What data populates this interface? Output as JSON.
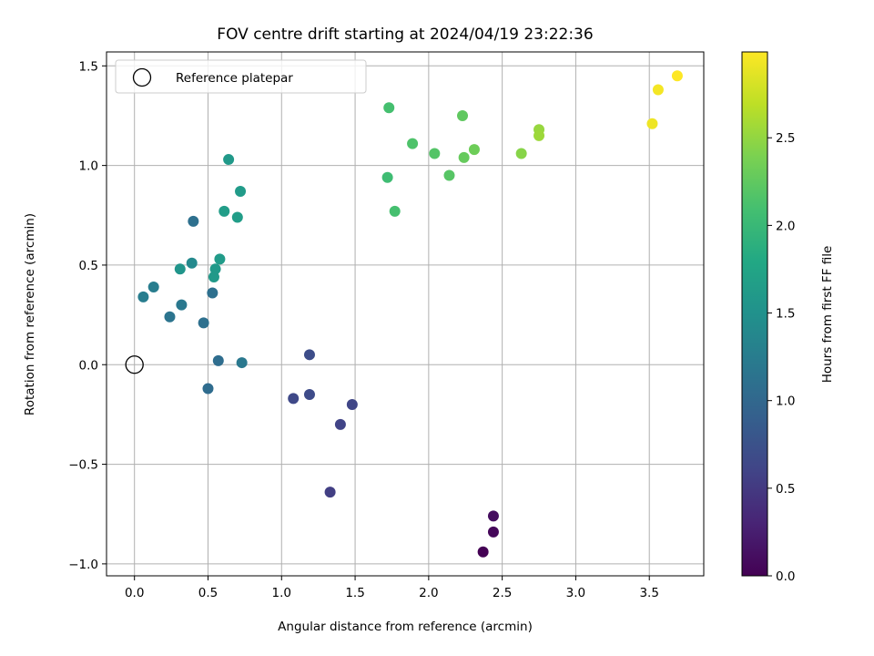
{
  "chart_data": {
    "type": "scatter",
    "title": "FOV centre drift starting at 2024/04/19 23:22:36",
    "xlabel": "Angular distance from reference (arcmin)",
    "ylabel": "Rotation from reference (arcmin)",
    "xlim": [
      -0.19,
      3.87
    ],
    "ylim": [
      -1.06,
      1.57
    ],
    "xticks": [
      0.0,
      0.5,
      1.0,
      1.5,
      2.0,
      2.5,
      3.0,
      3.5
    ],
    "xtick_labels": [
      "0.0",
      "0.5",
      "1.0",
      "1.5",
      "2.0",
      "2.5",
      "3.0",
      "3.5"
    ],
    "yticks": [
      -1.0,
      -0.5,
      0.0,
      0.5,
      1.0,
      1.5
    ],
    "ytick_labels": [
      "−1.0",
      "−0.5",
      "0.0",
      "0.5",
      "1.0",
      "1.5"
    ],
    "grid": true,
    "legend": {
      "position": "upper-left",
      "entries": [
        {
          "label": "Reference platepar",
          "marker": "hollow-circle",
          "x": 0.0,
          "y": 0.0
        }
      ]
    },
    "colorbar": {
      "label": "Hours from first FF file",
      "colormap": "viridis",
      "range": [
        0.0,
        2.99
      ],
      "ticks": [
        0.0,
        0.5,
        1.0,
        1.5,
        2.0,
        2.5
      ],
      "tick_labels": [
        "0.0",
        "0.5",
        "1.0",
        "1.5",
        "2.0",
        "2.5"
      ]
    },
    "points": [
      {
        "x": 2.37,
        "y": -0.94,
        "c": 0.0
      },
      {
        "x": 2.44,
        "y": -0.84,
        "c": 0.05
      },
      {
        "x": 2.44,
        "y": -0.76,
        "c": 0.1
      },
      {
        "x": 1.33,
        "y": -0.64,
        "c": 0.55
      },
      {
        "x": 1.4,
        "y": -0.3,
        "c": 0.6
      },
      {
        "x": 1.48,
        "y": -0.2,
        "c": 0.62
      },
      {
        "x": 1.08,
        "y": -0.17,
        "c": 0.65
      },
      {
        "x": 1.19,
        "y": -0.15,
        "c": 0.68
      },
      {
        "x": 1.19,
        "y": 0.05,
        "c": 0.7
      },
      {
        "x": 0.5,
        "y": -0.12,
        "c": 1.05
      },
      {
        "x": 0.57,
        "y": 0.02,
        "c": 1.07
      },
      {
        "x": 0.73,
        "y": 0.01,
        "c": 1.2
      },
      {
        "x": 0.47,
        "y": 0.21,
        "c": 1.1
      },
      {
        "x": 0.24,
        "y": 0.24,
        "c": 1.15
      },
      {
        "x": 0.32,
        "y": 0.3,
        "c": 1.2
      },
      {
        "x": 0.53,
        "y": 0.36,
        "c": 1.1
      },
      {
        "x": 0.06,
        "y": 0.34,
        "c": 1.25
      },
      {
        "x": 0.13,
        "y": 0.39,
        "c": 1.25
      },
      {
        "x": 0.4,
        "y": 0.72,
        "c": 1.1
      },
      {
        "x": 0.39,
        "y": 0.51,
        "c": 1.4
      },
      {
        "x": 0.31,
        "y": 0.48,
        "c": 1.55
      },
      {
        "x": 0.55,
        "y": 0.48,
        "c": 1.6
      },
      {
        "x": 0.54,
        "y": 0.44,
        "c": 1.6
      },
      {
        "x": 0.58,
        "y": 0.53,
        "c": 1.62
      },
      {
        "x": 0.61,
        "y": 0.77,
        "c": 1.65
      },
      {
        "x": 0.7,
        "y": 0.74,
        "c": 1.65
      },
      {
        "x": 0.72,
        "y": 0.87,
        "c": 1.62
      },
      {
        "x": 0.64,
        "y": 1.03,
        "c": 1.6
      },
      {
        "x": 1.72,
        "y": 0.94,
        "c": 2.05
      },
      {
        "x": 1.77,
        "y": 0.77,
        "c": 2.1
      },
      {
        "x": 1.73,
        "y": 1.29,
        "c": 2.1
      },
      {
        "x": 1.89,
        "y": 1.11,
        "c": 2.15
      },
      {
        "x": 2.04,
        "y": 1.06,
        "c": 2.18
      },
      {
        "x": 2.14,
        "y": 0.95,
        "c": 2.2
      },
      {
        "x": 2.23,
        "y": 1.25,
        "c": 2.25
      },
      {
        "x": 2.24,
        "y": 1.04,
        "c": 2.28
      },
      {
        "x": 2.31,
        "y": 1.08,
        "c": 2.32
      },
      {
        "x": 2.63,
        "y": 1.06,
        "c": 2.45
      },
      {
        "x": 2.75,
        "y": 1.18,
        "c": 2.52
      },
      {
        "x": 2.75,
        "y": 1.15,
        "c": 2.55
      },
      {
        "x": 3.52,
        "y": 1.21,
        "c": 2.92
      },
      {
        "x": 3.56,
        "y": 1.38,
        "c": 2.95
      },
      {
        "x": 3.69,
        "y": 1.45,
        "c": 2.99
      }
    ]
  }
}
